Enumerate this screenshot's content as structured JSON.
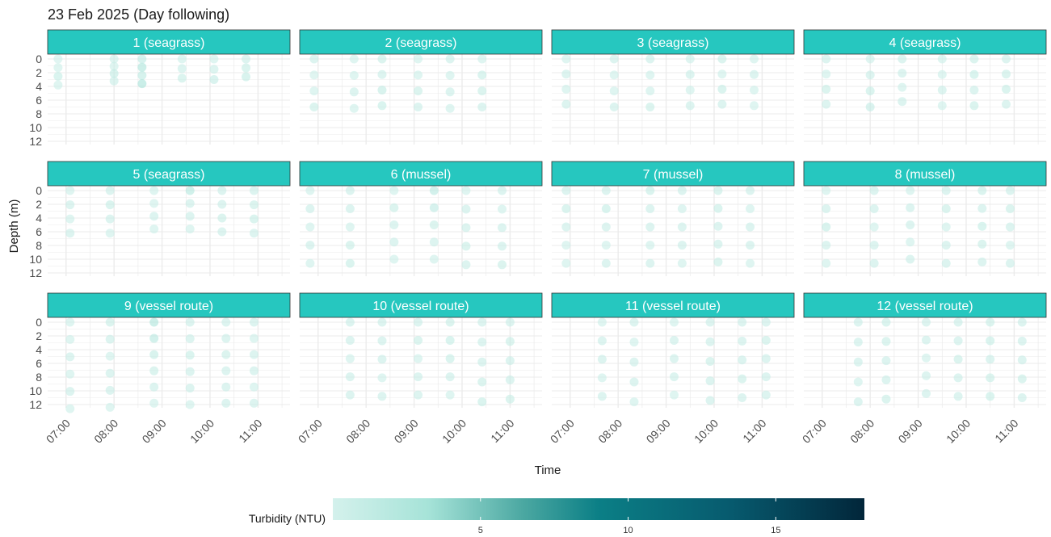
{
  "chart_data": {
    "type": "scatter",
    "title": "23 Feb 2025 (Day following)",
    "xlabel": "Time",
    "ylabel": "Depth (m)",
    "x_ticks": [
      "07:00",
      "08:00",
      "09:00",
      "10:00",
      "11:00"
    ],
    "x_range": [
      "06:37",
      "11:40"
    ],
    "y_ticks": [
      0,
      2,
      4,
      6,
      8,
      10,
      12
    ],
    "y_range": [
      0,
      13
    ],
    "y_reversed": true,
    "grid": true,
    "legend": {
      "title": "Turbidity (NTU)",
      "position": "bottom",
      "ticks": [
        5,
        10,
        15
      ],
      "range": [
        0,
        18
      ],
      "colors": [
        "#d4f1ec",
        "#a6e3d8",
        "#4aa7a1",
        "#0b7f86",
        "#075a6e",
        "#02263a"
      ]
    },
    "panels": [
      {
        "label": "1 (seagrass)",
        "casts": [
          {
            "time": "06:50",
            "max_depth": 3.8,
            "values": [
              0.6,
              0.8,
              1.4,
              0.9
            ]
          },
          {
            "time": "08:00",
            "max_depth": 3.2,
            "values": [
              0.8,
              0.9,
              1.6,
              1.0
            ]
          },
          {
            "time": "08:35",
            "max_depth": 3.6,
            "values": [
              1.8,
              3.2,
              2.0,
              3.6
            ]
          },
          {
            "time": "09:25",
            "max_depth": 2.8,
            "values": [
              0.9,
              1.0,
              1.2
            ]
          },
          {
            "time": "10:05",
            "max_depth": 3.0,
            "values": [
              0.9,
              1.1,
              1.5
            ]
          },
          {
            "time": "10:45",
            "max_depth": 2.6,
            "values": [
              1.0,
              1.3,
              1.6
            ]
          }
        ]
      },
      {
        "label": "2 (seagrass)",
        "casts": [
          {
            "time": "06:55",
            "max_depth": 7.0,
            "values": [
              1.0,
              0.7,
              0.9,
              1.2
            ]
          },
          {
            "time": "07:45",
            "max_depth": 7.2,
            "values": [
              0.8,
              0.9,
              1.0,
              0.9
            ]
          },
          {
            "time": "08:20",
            "max_depth": 6.8,
            "values": [
              1.2,
              1.0,
              1.6,
              1.4
            ]
          },
          {
            "time": "09:05",
            "max_depth": 7.0,
            "values": [
              0.8,
              0.9,
              1.2,
              1.0
            ]
          },
          {
            "time": "09:45",
            "max_depth": 7.2,
            "values": [
              1.0,
              0.9,
              1.1,
              0.8
            ]
          },
          {
            "time": "10:25",
            "max_depth": 7.0,
            "values": [
              0.9,
              1.3,
              1.2,
              1.1
            ]
          }
        ]
      },
      {
        "label": "3 (seagrass)",
        "casts": [
          {
            "time": "06:55",
            "max_depth": 6.6,
            "values": [
              0.9,
              1.1,
              0.8,
              1.0
            ]
          },
          {
            "time": "07:55",
            "max_depth": 7.0,
            "values": [
              1.1,
              0.8,
              0.9,
              1.0
            ]
          },
          {
            "time": "08:40",
            "max_depth": 7.0,
            "values": [
              1.0,
              0.9,
              0.8,
              1.2
            ]
          },
          {
            "time": "09:30",
            "max_depth": 6.8,
            "values": [
              0.8,
              1.1,
              0.9,
              1.0
            ]
          },
          {
            "time": "10:10",
            "max_depth": 6.6,
            "values": [
              1.2,
              0.9,
              1.3,
              1.0
            ]
          },
          {
            "time": "10:50",
            "max_depth": 6.8,
            "values": [
              0.9,
              1.0,
              0.8,
              0.9
            ]
          }
        ]
      },
      {
        "label": "4 (seagrass)",
        "casts": [
          {
            "time": "07:05",
            "max_depth": 6.6,
            "values": [
              1.1,
              0.9,
              1.2,
              1.0
            ]
          },
          {
            "time": "08:00",
            "max_depth": 7.0,
            "values": [
              0.8,
              1.0,
              1.3,
              1.5
            ]
          },
          {
            "time": "08:40",
            "max_depth": 6.2,
            "values": [
              1.0,
              1.1,
              0.9,
              1.0
            ]
          },
          {
            "time": "09:30",
            "max_depth": 6.8,
            "values": [
              0.9,
              0.8,
              1.0,
              0.9
            ]
          },
          {
            "time": "10:10",
            "max_depth": 6.8,
            "values": [
              1.2,
              1.4,
              1.1,
              1.3
            ]
          },
          {
            "time": "10:50",
            "max_depth": 6.6,
            "values": [
              1.0,
              1.2,
              1.3,
              1.1
            ]
          }
        ]
      },
      {
        "label": "5 (seagrass)",
        "casts": [
          {
            "time": "07:05",
            "max_depth": 6.2,
            "values": [
              0.9,
              1.0,
              0.8,
              1.1
            ]
          },
          {
            "time": "07:55",
            "max_depth": 6.2,
            "values": [
              1.0,
              1.3,
              1.1,
              0.9
            ]
          },
          {
            "time": "08:50",
            "max_depth": 5.6,
            "values": [
              0.8,
              0.9,
              1.0,
              0.9
            ]
          },
          {
            "time": "09:35",
            "max_depth": 5.6,
            "values": [
              2.6,
              1.1,
              1.0,
              0.9
            ]
          },
          {
            "time": "10:15",
            "max_depth": 6.0,
            "values": [
              1.1,
              1.0,
              1.2,
              1.0
            ]
          },
          {
            "time": "10:55",
            "max_depth": 6.2,
            "values": [
              1.0,
              1.2,
              1.3,
              1.1
            ]
          }
        ]
      },
      {
        "label": "6 (mussel)",
        "casts": [
          {
            "time": "06:50",
            "max_depth": 10.6,
            "values": [
              0.9,
              1.0,
              0.8,
              1.1,
              0.9
            ]
          },
          {
            "time": "07:40",
            "max_depth": 10.6,
            "values": [
              1.0,
              1.1,
              0.9,
              1.2,
              1.3
            ]
          },
          {
            "time": "08:35",
            "max_depth": 10.0,
            "values": [
              0.8,
              1.2,
              1.1,
              1.0,
              0.9
            ]
          },
          {
            "time": "09:25",
            "max_depth": 10.0,
            "values": [
              2.4,
              1.8,
              1.2,
              1.0,
              0.9
            ]
          },
          {
            "time": "10:05",
            "max_depth": 10.8,
            "values": [
              0.9,
              1.1,
              1.0,
              1.2,
              1.0
            ]
          },
          {
            "time": "10:50",
            "max_depth": 10.8,
            "values": [
              1.0,
              0.9,
              1.1,
              1.0,
              1.2
            ]
          }
        ]
      },
      {
        "label": "7 (mussel)",
        "casts": [
          {
            "time": "06:55",
            "max_depth": 10.6,
            "values": [
              1.0,
              1.3,
              1.1,
              0.9,
              0.8
            ]
          },
          {
            "time": "07:45",
            "max_depth": 10.6,
            "values": [
              1.1,
              1.4,
              1.0,
              0.9,
              1.0
            ]
          },
          {
            "time": "08:40",
            "max_depth": 10.6,
            "values": [
              1.3,
              1.0,
              1.1,
              0.9,
              1.0
            ]
          },
          {
            "time": "09:20",
            "max_depth": 10.6,
            "values": [
              1.0,
              0.9,
              1.1,
              1.0,
              0.9
            ]
          },
          {
            "time": "10:05",
            "max_depth": 10.4,
            "values": [
              1.2,
              1.3,
              1.1,
              1.0,
              1.2
            ]
          },
          {
            "time": "10:45",
            "max_depth": 10.6,
            "values": [
              1.1,
              0.9,
              1.0,
              1.1,
              0.9
            ]
          }
        ]
      },
      {
        "label": "8 (mussel)",
        "casts": [
          {
            "time": "07:05",
            "max_depth": 10.6,
            "values": [
              0.9,
              1.0,
              1.6,
              1.0,
              0.9
            ]
          },
          {
            "time": "08:05",
            "max_depth": 10.6,
            "values": [
              1.1,
              1.0,
              0.9,
              1.0,
              1.1
            ]
          },
          {
            "time": "08:50",
            "max_depth": 10.0,
            "values": [
              0.9,
              1.0,
              1.1,
              0.9,
              1.0
            ]
          },
          {
            "time": "09:35",
            "max_depth": 10.6,
            "values": [
              1.0,
              1.2,
              0.9,
              1.1,
              1.0
            ]
          },
          {
            "time": "10:20",
            "max_depth": 10.4,
            "values": [
              1.3,
              1.1,
              1.4,
              1.2,
              1.0
            ]
          },
          {
            "time": "10:55",
            "max_depth": 10.6,
            "values": [
              1.0,
              1.2,
              1.1,
              0.9,
              1.0
            ]
          }
        ]
      },
      {
        "label": "9 (vessel route)",
        "casts": [
          {
            "time": "07:05",
            "max_depth": 12.6,
            "values": [
              0.9,
              0.8,
              1.0,
              0.9,
              1.0,
              0.8
            ]
          },
          {
            "time": "07:55",
            "max_depth": 12.4,
            "values": [
              1.2,
              1.0,
              0.9,
              1.1,
              1.0,
              0.9
            ]
          },
          {
            "time": "08:50",
            "max_depth": 11.8,
            "values": [
              3.2,
              2.4,
              1.6,
              1.2,
              1.0,
              0.9
            ]
          },
          {
            "time": "09:35",
            "max_depth": 12.0,
            "values": [
              1.0,
              1.1,
              1.3,
              1.1,
              1.0,
              0.9
            ]
          },
          {
            "time": "10:20",
            "max_depth": 11.8,
            "values": [
              1.1,
              1.0,
              1.2,
              1.1,
              1.0,
              1.1
            ]
          },
          {
            "time": "10:55",
            "max_depth": 11.8,
            "values": [
              1.0,
              0.9,
              1.1,
              1.0,
              0.9,
              1.0
            ]
          }
        ]
      },
      {
        "label": "10 (vessel route)",
        "casts": [
          {
            "time": "07:40",
            "max_depth": 10.6,
            "values": [
              1.1,
              1.0,
              0.9,
              1.0,
              1.1
            ]
          },
          {
            "time": "08:20",
            "max_depth": 10.8,
            "values": [
              1.0,
              1.1,
              1.0,
              0.9,
              1.0
            ]
          },
          {
            "time": "09:05",
            "max_depth": 10.6,
            "values": [
              1.1,
              1.2,
              0.9,
              1.0,
              1.0
            ]
          },
          {
            "time": "09:45",
            "max_depth": 10.6,
            "values": [
              1.2,
              1.4,
              1.3,
              1.0,
              0.9
            ]
          },
          {
            "time": "10:25",
            "max_depth": 11.6,
            "values": [
              1.0,
              1.1,
              1.0,
              1.2,
              1.3
            ]
          },
          {
            "time": "11:00",
            "max_depth": 11.2,
            "values": [
              1.1,
              1.2,
              1.0,
              1.1,
              1.2
            ]
          }
        ]
      },
      {
        "label": "11 (vessel route)",
        "casts": [
          {
            "time": "07:40",
            "max_depth": 10.8,
            "values": [
              0.9,
              1.0,
              1.1,
              0.9,
              1.0
            ]
          },
          {
            "time": "08:20",
            "max_depth": 11.6,
            "values": [
              1.0,
              0.9,
              1.0,
              1.1,
              0.9
            ]
          },
          {
            "time": "09:10",
            "max_depth": 10.6,
            "values": [
              0.9,
              1.0,
              1.1,
              1.0,
              0.9
            ]
          },
          {
            "time": "09:55",
            "max_depth": 11.4,
            "values": [
              1.1,
              1.0,
              1.2,
              1.0,
              1.1
            ]
          },
          {
            "time": "10:35",
            "max_depth": 11.0,
            "values": [
              1.0,
              1.1,
              1.0,
              1.2,
              1.1
            ]
          },
          {
            "time": "11:05",
            "max_depth": 10.6,
            "values": [
              1.0,
              1.2,
              1.1,
              1.0,
              1.0
            ]
          }
        ]
      },
      {
        "label": "12 (vessel route)",
        "casts": [
          {
            "time": "07:45",
            "max_depth": 11.6,
            "values": [
              1.0,
              1.1,
              1.0,
              0.9,
              1.0
            ]
          },
          {
            "time": "08:20",
            "max_depth": 11.2,
            "values": [
              1.3,
              1.2,
              1.1,
              1.0,
              1.2
            ]
          },
          {
            "time": "09:10",
            "max_depth": 10.4,
            "values": [
              1.0,
              1.1,
              0.9,
              1.0,
              1.1
            ]
          },
          {
            "time": "09:50",
            "max_depth": 10.8,
            "values": [
              1.1,
              1.0,
              1.2,
              1.0,
              1.1
            ]
          },
          {
            "time": "10:30",
            "max_depth": 10.8,
            "values": [
              1.2,
              1.3,
              1.1,
              1.2,
              1.3
            ]
          },
          {
            "time": "11:10",
            "max_depth": 11.0,
            "values": [
              1.0,
              1.1,
              1.0,
              1.2,
              1.1
            ]
          }
        ]
      }
    ]
  }
}
